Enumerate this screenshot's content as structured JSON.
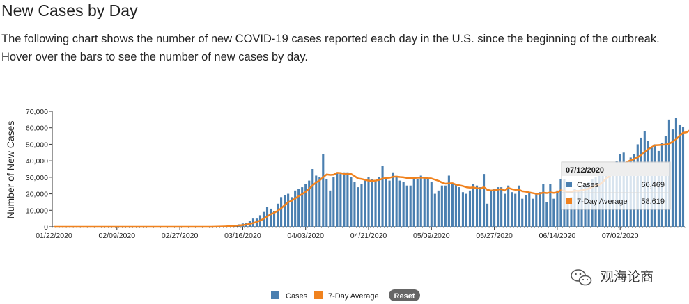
{
  "header": {
    "title": "New Cases by Day",
    "description": "The following chart shows the number of new COVID-19 cases reported each day in the U.S. since the beginning of the outbreak. Hover over the bars to see the number of new cases by day."
  },
  "tooltip": {
    "date": "07/12/2020",
    "rows": [
      {
        "label": "Cases",
        "value": "60,469",
        "color": "#4a7fb0"
      },
      {
        "label": "7-Day Average",
        "value": "58,619",
        "color": "#f0821e"
      }
    ]
  },
  "legend": {
    "items": [
      {
        "label": "Cases",
        "color": "#4a7fb0"
      },
      {
        "label": "7-Day Average",
        "color": "#f0821e"
      }
    ],
    "reset_label": "Reset"
  },
  "watermark": {
    "text": "观海论商",
    "icon": "wechat-icon"
  },
  "colors": {
    "bars": "#4a7fb0",
    "line": "#f0821e",
    "axis": "#333333"
  },
  "chart_data": {
    "type": "bar",
    "ylabel": "Number of New Cases",
    "xlabel": "",
    "ylim": [
      0,
      70000
    ],
    "y_ticks": [
      0,
      10000,
      20000,
      30000,
      40000,
      50000,
      60000,
      70000
    ],
    "y_tick_labels": [
      "0",
      "10,000",
      "20,000",
      "30,000",
      "40,000",
      "50,000",
      "60,000",
      "70,000"
    ],
    "x_tick_labels": [
      "01/22/2020",
      "02/09/2020",
      "02/27/2020",
      "03/16/2020",
      "04/03/2020",
      "04/21/2020",
      "05/09/2020",
      "05/27/2020",
      "06/14/2020",
      "07/02/2020"
    ],
    "x_start": "01/22/2020",
    "x_end": "07/12/2020",
    "series": [
      {
        "name": "Cases",
        "kind": "bar",
        "values": [
          0,
          0,
          0,
          0,
          0,
          0,
          0,
          0,
          0,
          0,
          0,
          0,
          0,
          0,
          0,
          0,
          0,
          0,
          0,
          0,
          0,
          0,
          0,
          0,
          0,
          0,
          0,
          0,
          0,
          0,
          0,
          0,
          0,
          0,
          0,
          0,
          0,
          0,
          0,
          0,
          0,
          0,
          0,
          0,
          0,
          100,
          200,
          300,
          400,
          600,
          900,
          1000,
          1200,
          1500,
          2000,
          2500,
          3500,
          5000,
          5000,
          7000,
          9000,
          12000,
          11000,
          9500,
          14000,
          18000,
          19000,
          20000,
          18000,
          22000,
          23000,
          24000,
          26000,
          28000,
          35000,
          31000,
          30000,
          44000,
          29000,
          22000,
          30000,
          33000,
          32000,
          33000,
          33000,
          30000,
          27000,
          24000,
          26000,
          28000,
          30000,
          29000,
          28000,
          30000,
          37000,
          29000,
          28000,
          33000,
          30000,
          28000,
          27000,
          25000,
          25000,
          30000,
          29000,
          31000,
          30000,
          29000,
          27000,
          20000,
          22000,
          25000,
          25000,
          31000,
          26000,
          26000,
          24000,
          21000,
          20000,
          22000,
          26000,
          25000,
          24000,
          32000,
          14000,
          22000,
          23000,
          24000,
          24000,
          20000,
          25000,
          21000,
          20000,
          25000,
          17000,
          19000,
          21000,
          17000,
          20000,
          21000,
          26000,
          15000,
          26000,
          17000,
          22000,
          29000,
          29000,
          17000,
          18000,
          23000,
          22000,
          24000,
          26000,
          27000,
          29000,
          30000,
          31000,
          33000,
          33000,
          35000,
          38000,
          40000,
          44000,
          45000,
          40000,
          42000,
          44000,
          50000,
          54000,
          58000,
          52000,
          48000,
          50000,
          46000,
          51000,
          55000,
          65000,
          59000,
          66000,
          62000,
          60469
        ],
        "color": "#4a7fb0"
      },
      {
        "name": "7-Day Average",
        "kind": "line",
        "values": [
          0,
          0,
          0,
          0,
          0,
          0,
          0,
          0,
          0,
          0,
          0,
          0,
          0,
          0,
          0,
          0,
          0,
          0,
          0,
          0,
          0,
          0,
          0,
          0,
          0,
          0,
          0,
          0,
          0,
          0,
          0,
          0,
          0,
          0,
          0,
          0,
          0,
          0,
          0,
          0,
          0,
          0,
          0,
          0,
          0,
          14,
          43,
          86,
          143,
          229,
          357,
          500,
          671,
          857,
          1071,
          1343,
          1743,
          2300,
          2957,
          3786,
          4857,
          6286,
          7571,
          8500,
          9643,
          11214,
          13071,
          14929,
          15786,
          17143,
          18571,
          19857,
          21143,
          23000,
          25143,
          26857,
          28143,
          30000,
          31714,
          31429,
          31571,
          32714,
          32571,
          32143,
          31857,
          32000,
          30714,
          29286,
          29000,
          28429,
          28000,
          27857,
          28000,
          28429,
          29143,
          29571,
          29714,
          30286,
          30429,
          30143,
          30000,
          29571,
          29429,
          29571,
          29714,
          29857,
          29714,
          29429,
          29286,
          28571,
          27857,
          26857,
          26143,
          26286,
          26429,
          25571,
          25143,
          24714,
          24000,
          23714,
          23857,
          23429,
          23143,
          24000,
          22429,
          22000,
          22143,
          22571,
          22857,
          22000,
          23571,
          22857,
          22429,
          22571,
          21571,
          21286,
          20857,
          20429,
          20000,
          20143,
          20714,
          20429,
          20857,
          20571,
          20857,
          22143,
          21857,
          21143,
          21286,
          21857,
          21714,
          22143,
          22571,
          23143,
          24143,
          25000,
          25429,
          27143,
          29286,
          30714,
          32429,
          34000,
          35714,
          37571,
          39429,
          40286,
          41143,
          42143,
          43571,
          45429,
          47000,
          48286,
          49429,
          49571,
          49714,
          49857,
          50286,
          51571,
          53000,
          55143,
          57000,
          57286,
          58619
        ],
        "color": "#f0821e"
      }
    ],
    "grid": false,
    "legend_position": "bottom-center"
  }
}
